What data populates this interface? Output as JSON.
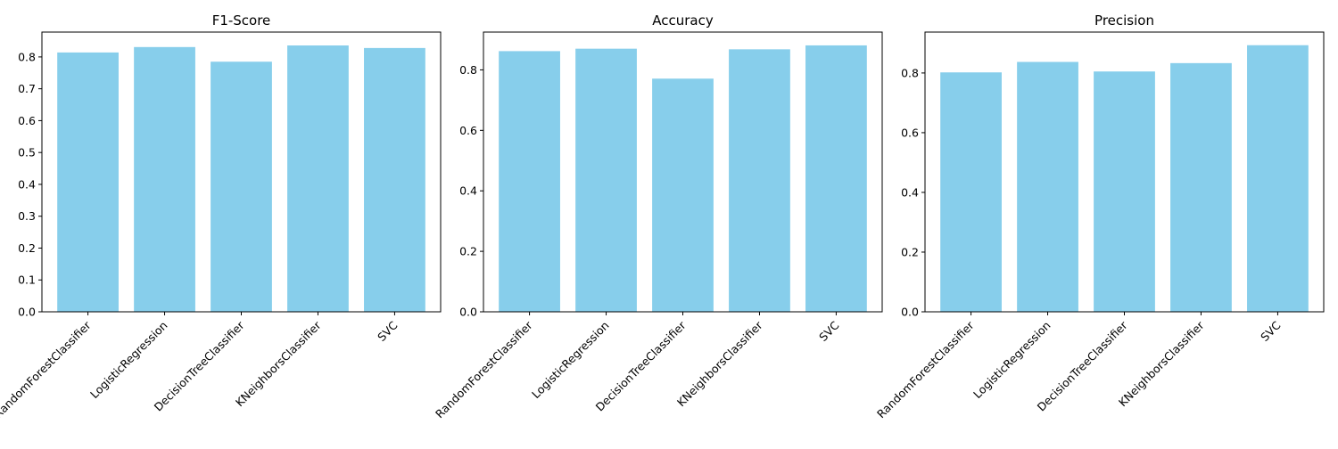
{
  "colors": {
    "bar": "#87CEEB",
    "axis": "#000000",
    "background": "#ffffff"
  },
  "chart_data": [
    {
      "type": "bar",
      "title": "F1-Score",
      "categories": [
        "RandomForestClassifier",
        "LogisticRegression",
        "DecisionTreeClassifier",
        "KNeighborsClassifier",
        "SVC"
      ],
      "values": [
        0.814,
        0.831,
        0.785,
        0.836,
        0.828
      ],
      "ylim": [
        0,
        0.878
      ],
      "yticks": [
        0.0,
        0.1,
        0.2,
        0.3,
        0.4,
        0.5,
        0.6,
        0.7,
        0.8
      ],
      "ytick_labels": [
        "0.0",
        "0.1",
        "0.2",
        "0.3",
        "0.4",
        "0.5",
        "0.6",
        "0.7",
        "0.8"
      ],
      "xlabel": "",
      "ylabel": "",
      "grid": false
    },
    {
      "type": "bar",
      "title": "Accuracy",
      "categories": [
        "RandomForestClassifier",
        "LogisticRegression",
        "DecisionTreeClassifier",
        "KNeighborsClassifier",
        "SVC"
      ],
      "values": [
        0.862,
        0.87,
        0.771,
        0.868,
        0.881
      ],
      "ylim": [
        0,
        0.925
      ],
      "yticks": [
        0.0,
        0.2,
        0.4,
        0.6,
        0.8
      ],
      "ytick_labels": [
        "0.0",
        "0.2",
        "0.4",
        "0.6",
        "0.8"
      ],
      "xlabel": "",
      "ylabel": "",
      "grid": false
    },
    {
      "type": "bar",
      "title": "Precision",
      "categories": [
        "RandomForestClassifier",
        "LogisticRegression",
        "DecisionTreeClassifier",
        "KNeighborsClassifier",
        "SVC"
      ],
      "values": [
        0.802,
        0.837,
        0.805,
        0.833,
        0.893
      ],
      "ylim": [
        0,
        0.937
      ],
      "yticks": [
        0.0,
        0.2,
        0.4,
        0.6,
        0.8
      ],
      "ytick_labels": [
        "0.0",
        "0.2",
        "0.4",
        "0.6",
        "0.8"
      ],
      "xlabel": "",
      "ylabel": "",
      "grid": false
    }
  ]
}
